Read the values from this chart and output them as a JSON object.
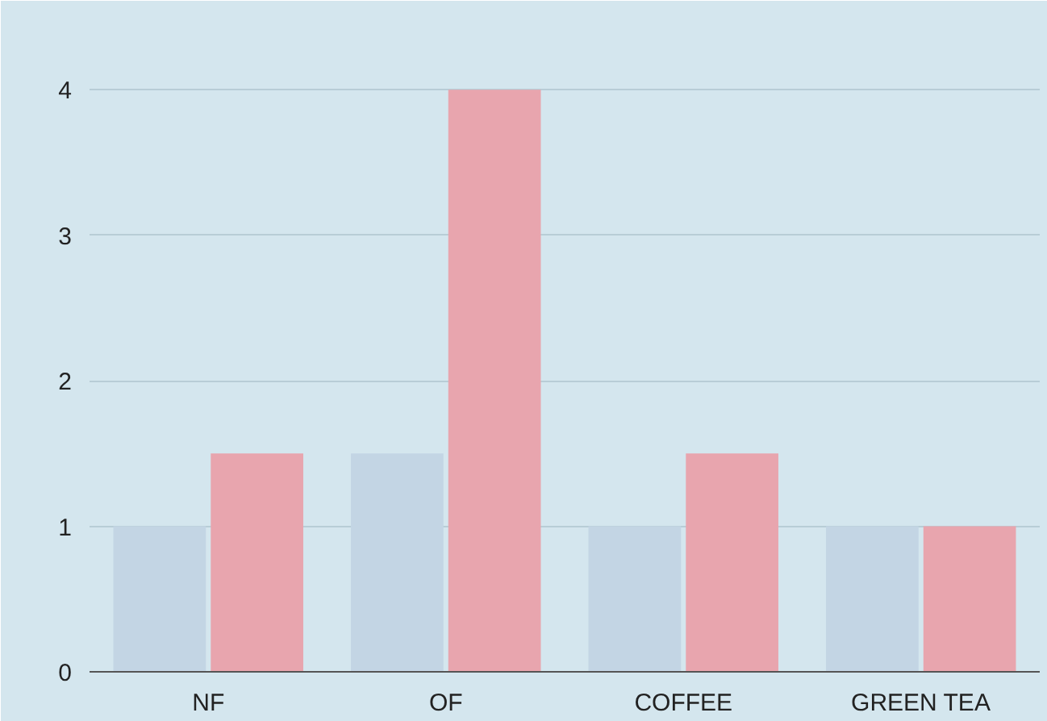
{
  "chart_data": {
    "type": "bar",
    "categories": [
      "NF",
      "OF",
      "COFFEE",
      "GREEN TEA"
    ],
    "series": [
      {
        "color": "#c3d5e4",
        "values": [
          1,
          1.5,
          1,
          1
        ]
      },
      {
        "color": "#e8a5ae",
        "values": [
          1.5,
          4,
          1.5,
          1
        ]
      }
    ],
    "ylim": [
      0,
      4.5
    ],
    "yticks": [
      0,
      1,
      2,
      3,
      4
    ],
    "grid": "y"
  }
}
